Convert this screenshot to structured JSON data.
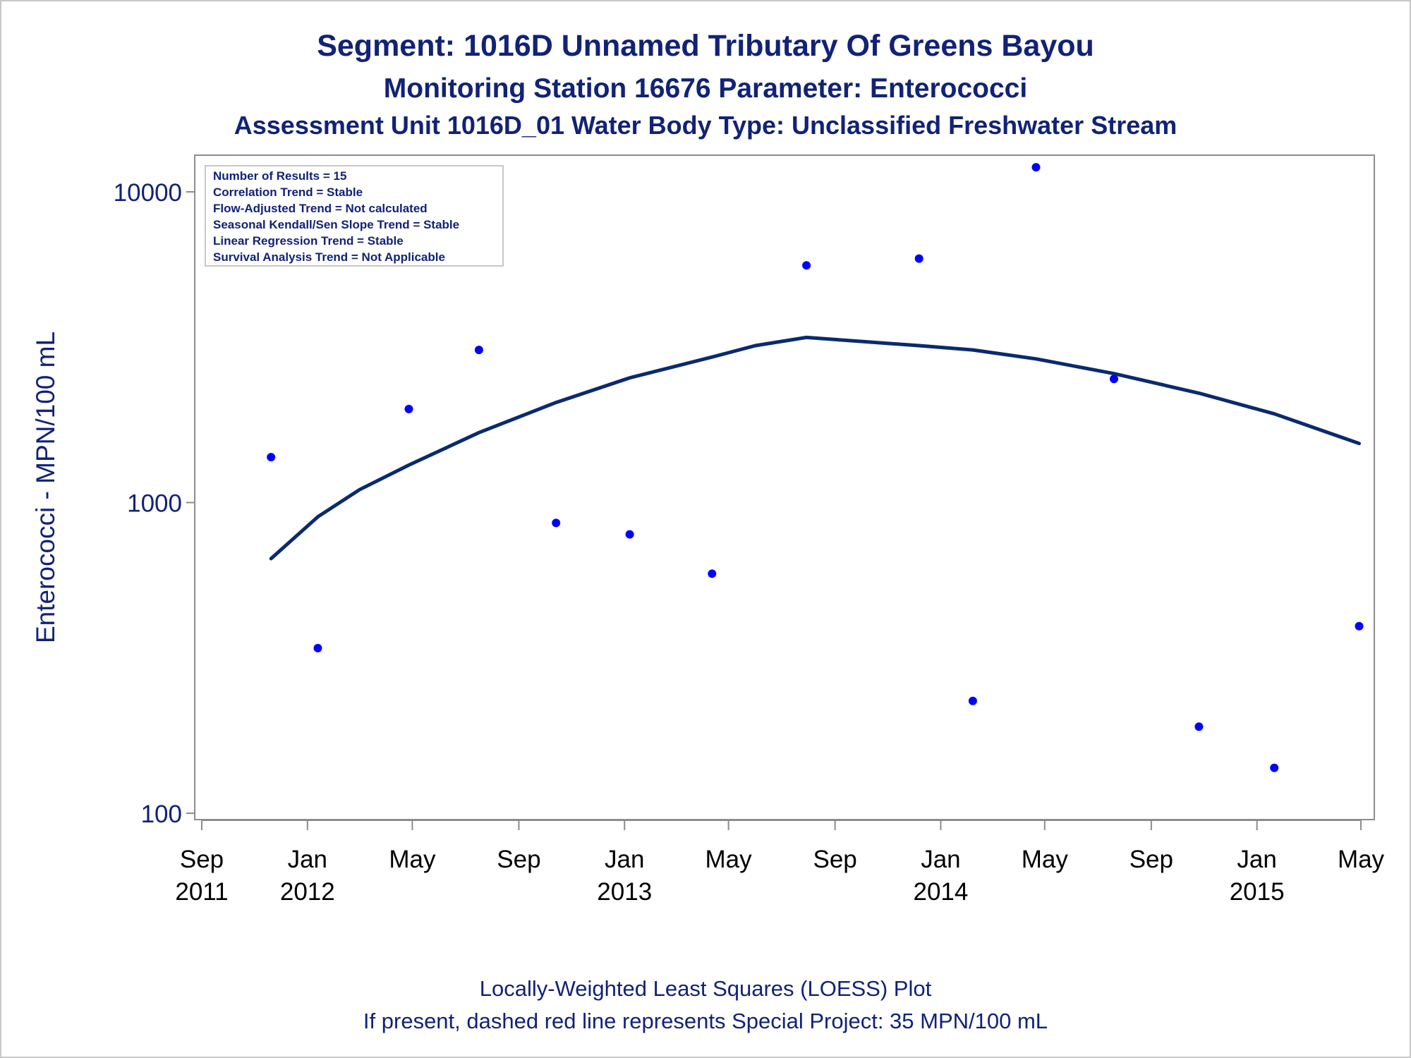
{
  "chart_data": {
    "type": "scatter",
    "title": "Segment: 1016D  Unnamed Tributary Of Greens Bayou",
    "subtitle": "Monitoring Station 16676 Parameter: Enterococci",
    "subtitle2": "Assessment Unit 1016D_01   Water Body Type: Unclassified Freshwater Stream",
    "ylabel": "Enterococci - MPN/100 mL",
    "xlabel": "",
    "yscale": "log",
    "ylim": [
      100,
      14000
    ],
    "y_ticks": [
      {
        "value": 100,
        "label": "100"
      },
      {
        "value": 1000,
        "label": "1000"
      },
      {
        "value": 10000,
        "label": "10000"
      }
    ],
    "xlim": [
      "2011-09-01",
      "2015-05-01"
    ],
    "x_ticks": [
      {
        "date": "2011-09-01",
        "month": "Sep",
        "year": "2011"
      },
      {
        "date": "2012-01-01",
        "month": "Jan",
        "year": "2012"
      },
      {
        "date": "2012-05-01",
        "month": "May",
        "year": ""
      },
      {
        "date": "2012-09-01",
        "month": "Sep",
        "year": ""
      },
      {
        "date": "2013-01-01",
        "month": "Jan",
        "year": "2013"
      },
      {
        "date": "2013-05-01",
        "month": "May",
        "year": ""
      },
      {
        "date": "2013-09-01",
        "month": "Sep",
        "year": ""
      },
      {
        "date": "2014-01-01",
        "month": "Jan",
        "year": "2014"
      },
      {
        "date": "2014-05-01",
        "month": "May",
        "year": ""
      },
      {
        "date": "2014-09-01",
        "month": "Sep",
        "year": ""
      },
      {
        "date": "2015-01-01",
        "month": "Jan",
        "year": "2015"
      },
      {
        "date": "2015-05-01",
        "month": "May",
        "year": ""
      }
    ],
    "legend_placement": "top-left",
    "info_box": [
      "Number of Results = 15",
      "Correlation Trend = Stable",
      "Flow-Adjusted Trend = Not calculated",
      "Seasonal Kendall/Sen Slope Trend = Stable",
      "Linear Regression Trend = Stable",
      "Survival Analysis Trend = Not Applicable"
    ],
    "series": [
      {
        "kind": "scatter",
        "color": "#0000ff",
        "points": [
          {
            "x": "2011-11-20",
            "y": 1400
          },
          {
            "x": "2012-01-13",
            "y": 340
          },
          {
            "x": "2012-04-27",
            "y": 2000
          },
          {
            "x": "2012-07-17",
            "y": 3100
          },
          {
            "x": "2012-10-14",
            "y": 860
          },
          {
            "x": "2013-01-07",
            "y": 790
          },
          {
            "x": "2013-04-12",
            "y": 590
          },
          {
            "x": "2013-07-30",
            "y": 5800
          },
          {
            "x": "2013-12-07",
            "y": 6100
          },
          {
            "x": "2014-02-07",
            "y": 230
          },
          {
            "x": "2014-04-21",
            "y": 12000
          },
          {
            "x": "2014-07-20",
            "y": 2500
          },
          {
            "x": "2014-10-26",
            "y": 190
          },
          {
            "x": "2015-01-21",
            "y": 140
          },
          {
            "x": "2015-04-29",
            "y": 400
          }
        ]
      },
      {
        "kind": "line",
        "color": "#0a2a6e",
        "points": [
          {
            "x": "2011-11-20",
            "y": 660
          },
          {
            "x": "2012-01-13",
            "y": 900
          },
          {
            "x": "2012-03-01",
            "y": 1100
          },
          {
            "x": "2012-04-27",
            "y": 1320
          },
          {
            "x": "2012-07-17",
            "y": 1680
          },
          {
            "x": "2012-10-14",
            "y": 2100
          },
          {
            "x": "2013-01-07",
            "y": 2520
          },
          {
            "x": "2013-04-12",
            "y": 2940
          },
          {
            "x": "2013-06-01",
            "y": 3200
          },
          {
            "x": "2013-07-30",
            "y": 3400
          },
          {
            "x": "2013-12-07",
            "y": 3200
          },
          {
            "x": "2014-02-07",
            "y": 3100
          },
          {
            "x": "2014-04-21",
            "y": 2900
          },
          {
            "x": "2014-07-20",
            "y": 2600
          },
          {
            "x": "2014-10-26",
            "y": 2250
          },
          {
            "x": "2015-01-21",
            "y": 1930
          },
          {
            "x": "2015-04-29",
            "y": 1550
          }
        ]
      }
    ],
    "footnote1": "Locally-Weighted Least Squares (LOESS) Plot",
    "footnote2": "If present, dashed red line represents Special Project: 35 MPN/100 mL"
  }
}
